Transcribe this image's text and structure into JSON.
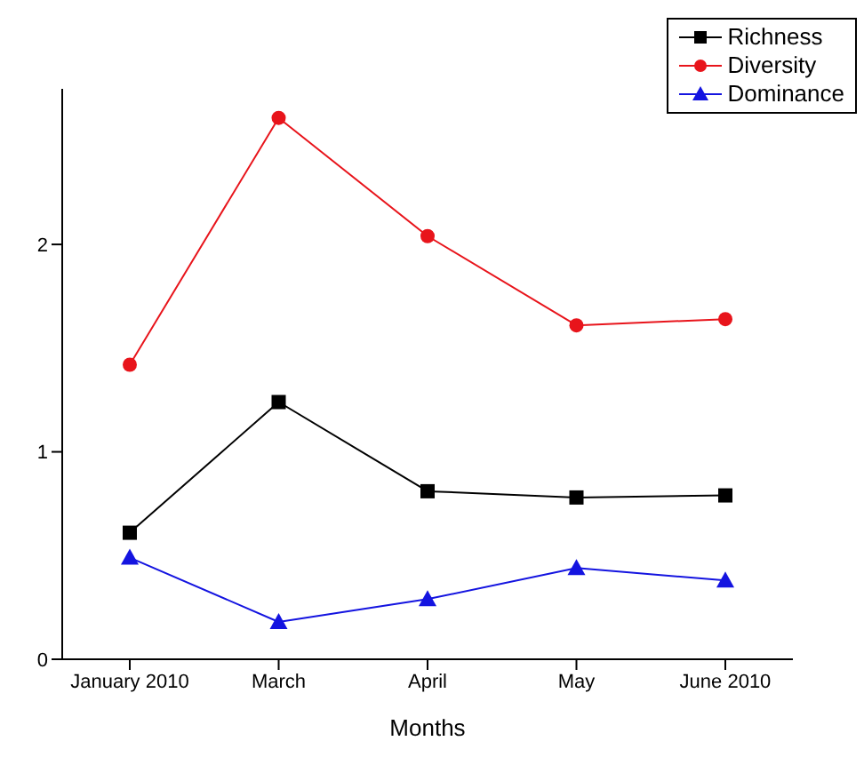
{
  "chart_data": {
    "type": "line",
    "xlabel": "Months",
    "categories": [
      "January 2010",
      "March",
      "April",
      "May",
      "June 2010"
    ],
    "series": [
      {
        "name": "Richness",
        "color": "#000000",
        "marker": "square",
        "values": [
          0.61,
          1.24,
          0.81,
          0.78,
          0.79
        ]
      },
      {
        "name": "Diversity",
        "color": "#e8141b",
        "marker": "circle",
        "values": [
          1.42,
          2.61,
          2.04,
          1.61,
          1.64
        ]
      },
      {
        "name": "Dominance",
        "color": "#1414e0",
        "marker": "triangle",
        "values": [
          0.49,
          0.18,
          0.29,
          0.44,
          0.38
        ]
      }
    ],
    "ylim": [
      0,
      2.75
    ],
    "yticks": [
      0,
      1,
      2
    ],
    "grid": false,
    "legend": "top right",
    "line_style": "solid"
  }
}
